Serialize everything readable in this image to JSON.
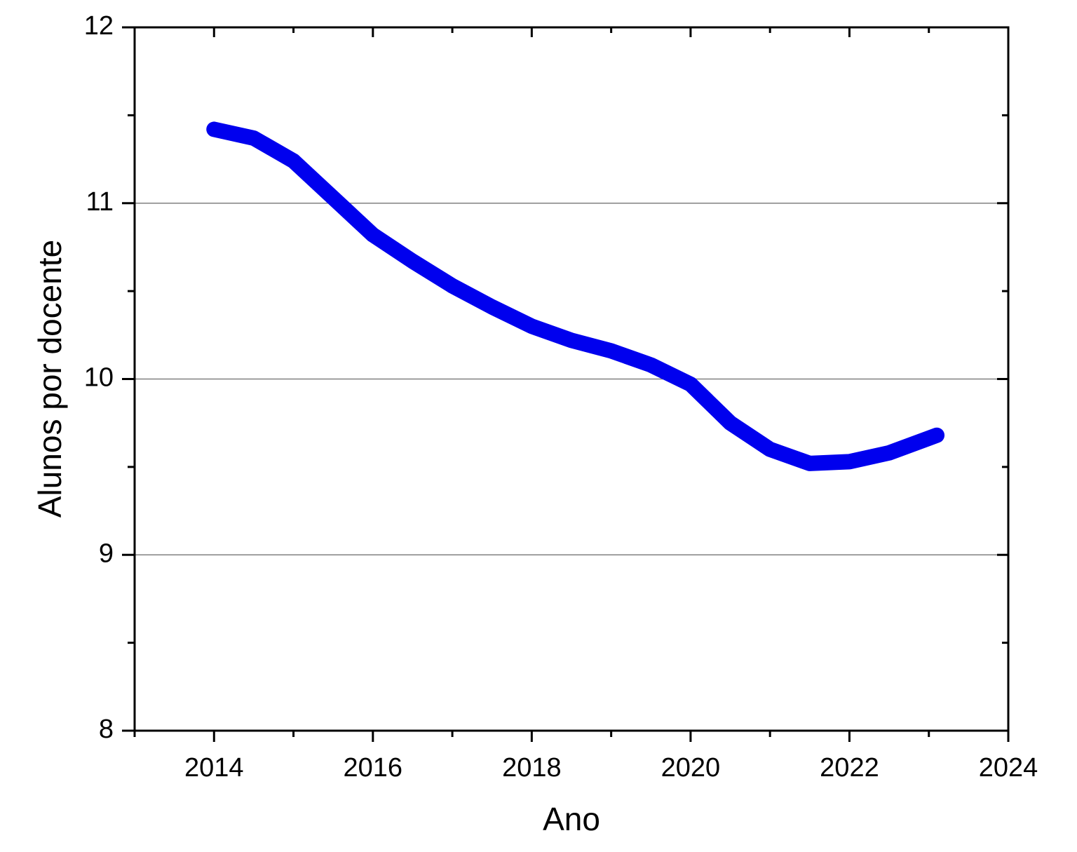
{
  "chart_data": {
    "type": "line",
    "x_label": "Ano",
    "y_label": "Alunos por docente",
    "x": [
      2014,
      2014.5,
      2015,
      2015.5,
      2016,
      2016.5,
      2017,
      2017.5,
      2018,
      2018.5,
      2019,
      2019.5,
      2020,
      2020.5,
      2021,
      2021.5,
      2022,
      2022.5,
      2023.1
    ],
    "series": [
      {
        "color": "#0000ee",
        "values": [
          11.42,
          11.37,
          11.24,
          11.03,
          10.82,
          10.67,
          10.53,
          10.41,
          10.3,
          10.22,
          10.16,
          10.08,
          9.97,
          9.75,
          9.6,
          9.52,
          9.53,
          9.58,
          9.68
        ]
      }
    ],
    "xlim": [
      2013,
      2024
    ],
    "xticks": [
      2014,
      2016,
      2018,
      2020,
      2022,
      2024
    ],
    "ylim": [
      8,
      12
    ],
    "yticks": [
      8,
      9,
      10,
      11,
      12
    ],
    "grid": true
  }
}
